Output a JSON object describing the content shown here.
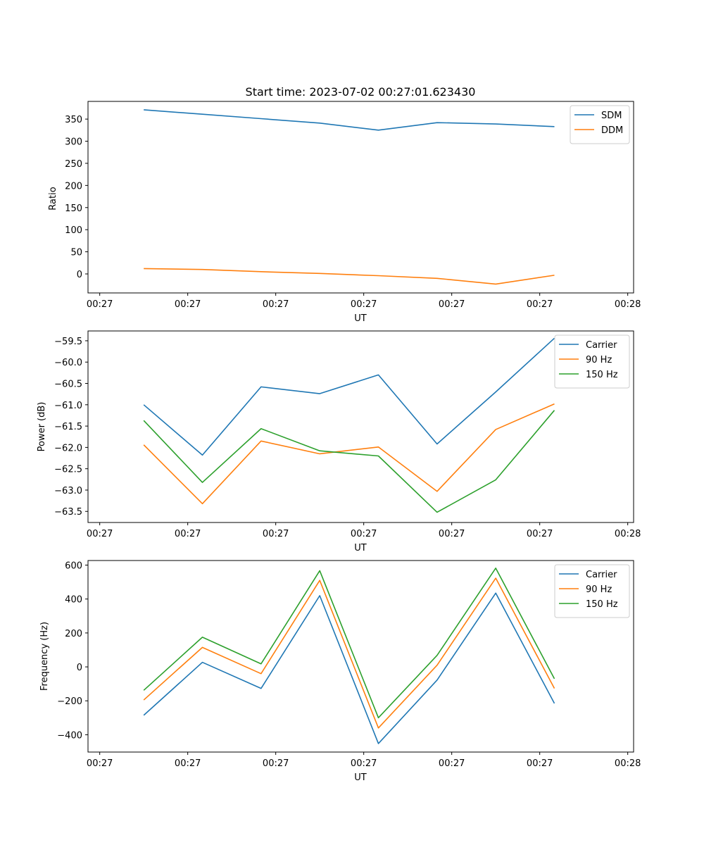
{
  "chart_data": [
    {
      "type": "line",
      "title": "Start time: 2023-07-02 00:27:01.623430",
      "xlabel": "UT",
      "ylabel": "Ratio",
      "xlim": [
        -0.2,
        9.1
      ],
      "x": [
        0.75,
        1.75,
        2.75,
        3.75,
        4.75,
        5.75,
        6.75,
        7.75
      ],
      "xticks": [
        0,
        1.5,
        3,
        4.5,
        6,
        7.5,
        9
      ],
      "xtick_labels": [
        "00:27",
        "00:27",
        "00:27",
        "00:27",
        "00:27",
        "00:27",
        "00:28"
      ],
      "ylim": [
        -43,
        390
      ],
      "yticks": [
        0,
        50,
        100,
        150,
        200,
        250,
        300,
        350
      ],
      "ytick_labels": [
        "0",
        "50",
        "100",
        "150",
        "200",
        "250",
        "300",
        "350"
      ],
      "legend": "top-right",
      "series": [
        {
          "name": "SDM",
          "color": "#1f77b4",
          "values": [
            371,
            361,
            351,
            341,
            325,
            342,
            339,
            333
          ]
        },
        {
          "name": "DDM",
          "color": "#ff7f0e",
          "values": [
            12,
            10,
            5,
            1,
            -4,
            -10,
            -23,
            -3
          ]
        }
      ]
    },
    {
      "type": "line",
      "title": "",
      "xlabel": "UT",
      "ylabel": "Power (dB)",
      "xlim": [
        -0.2,
        9.1
      ],
      "x": [
        0.75,
        1.75,
        2.75,
        3.75,
        4.75,
        5.75,
        6.75,
        7.75
      ],
      "xticks": [
        0,
        1.5,
        3,
        4.5,
        6,
        7.5,
        9
      ],
      "xtick_labels": [
        "00:27",
        "00:27",
        "00:27",
        "00:27",
        "00:27",
        "00:27",
        "00:28"
      ],
      "ylim": [
        -63.76,
        -59.27
      ],
      "yticks": [
        -63.5,
        -63.0,
        -62.5,
        -62.0,
        -61.5,
        -61.0,
        -60.5,
        -60.0,
        -59.5
      ],
      "ytick_labels": [
        "−63.5",
        "−63.0",
        "−62.5",
        "−62.0",
        "−61.5",
        "−61.0",
        "−60.5",
        "−60.0",
        "−59.5"
      ],
      "legend": "top-right",
      "series": [
        {
          "name": "Carrier",
          "color": "#1f77b4",
          "values": [
            -61.0,
            -62.18,
            -60.58,
            -60.74,
            -60.3,
            -61.92,
            -60.7,
            -59.44
          ]
        },
        {
          "name": "90 Hz",
          "color": "#ff7f0e",
          "values": [
            -61.94,
            -63.32,
            -61.85,
            -62.15,
            -61.99,
            -63.03,
            -61.58,
            -60.98
          ]
        },
        {
          "name": "150 Hz",
          "color": "#2ca02c",
          "values": [
            -61.37,
            -62.82,
            -61.56,
            -62.08,
            -62.2,
            -63.52,
            -62.76,
            -61.13
          ]
        }
      ]
    },
    {
      "type": "line",
      "title": "",
      "xlabel": "UT",
      "ylabel": "Frequency (Hz)",
      "xlim": [
        -0.2,
        9.1
      ],
      "x": [
        0.75,
        1.75,
        2.75,
        3.75,
        4.75,
        5.75,
        6.75,
        7.75
      ],
      "xticks": [
        0,
        1.5,
        3,
        4.5,
        6,
        7.5,
        9
      ],
      "xtick_labels": [
        "00:27",
        "00:27",
        "00:27",
        "00:27",
        "00:27",
        "00:27",
        "00:28"
      ],
      "ylim": [
        -502,
        627
      ],
      "yticks": [
        -400,
        -200,
        0,
        200,
        400,
        600
      ],
      "ytick_labels": [
        "−400",
        "−200",
        "0",
        "200",
        "400",
        "600"
      ],
      "legend": "top-right",
      "series": [
        {
          "name": "Carrier",
          "color": "#1f77b4",
          "values": [
            -285,
            27,
            -127,
            420,
            -452,
            -78,
            435,
            -215
          ]
        },
        {
          "name": "90 Hz",
          "color": "#ff7f0e",
          "values": [
            -195,
            115,
            -40,
            510,
            -360,
            10,
            523,
            -127
          ]
        },
        {
          "name": "150 Hz",
          "color": "#2ca02c",
          "values": [
            -138,
            175,
            18,
            567,
            -300,
            68,
            582,
            -70
          ]
        }
      ]
    }
  ]
}
